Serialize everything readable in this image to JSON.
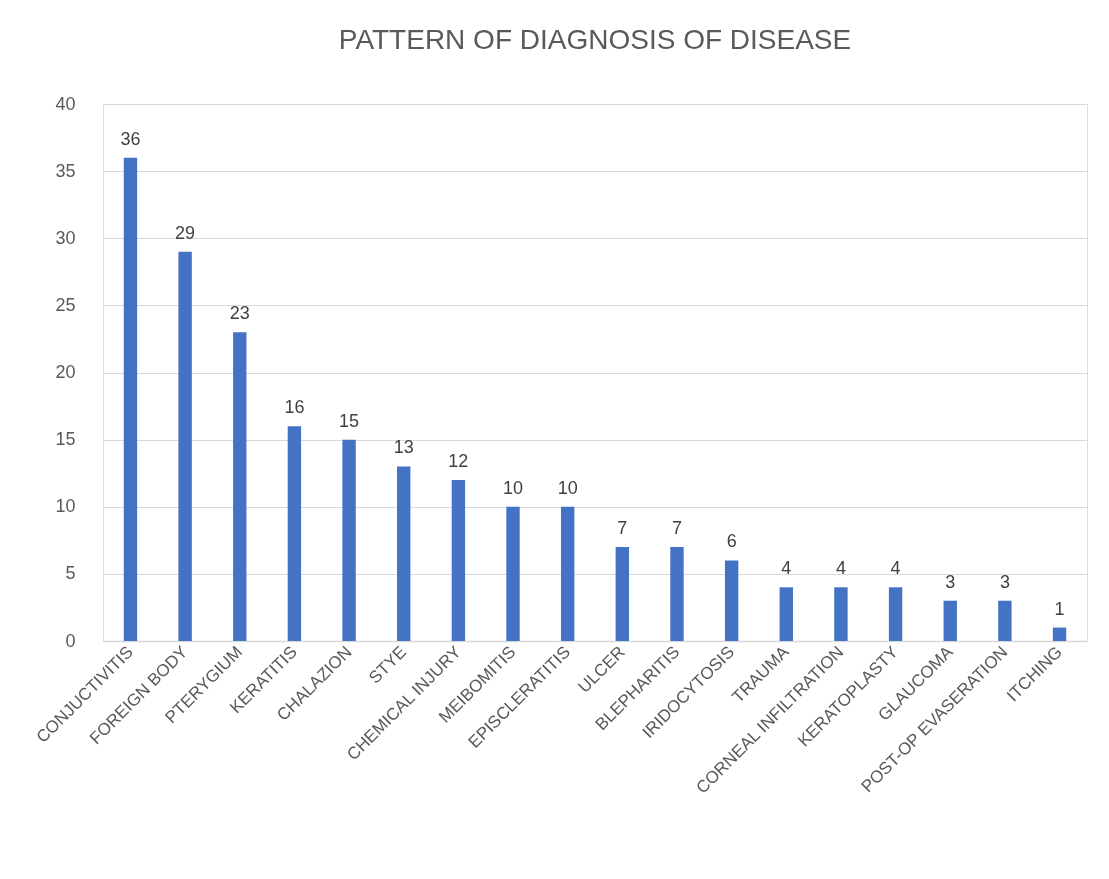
{
  "chart_data": {
    "type": "bar",
    "title": "PATTERN OF DIAGNOSIS OF DISEASE",
    "categories": [
      "CONJUCTIVITIS",
      "FOREIGN BODY",
      "PTERYGIUM",
      "KERATITIS",
      "CHALAZION",
      "STYE",
      "CHEMICAL INJURY",
      "MEIBOMITIS",
      "EPISCLERATITIS",
      "ULCER",
      "BLEPHARITIS",
      "IRIDOCYTOSIS",
      "TRAUMA",
      "CORNEAL INFILTRATION",
      "KERATOPLASTY",
      "GLAUCOMA",
      "POST-OP EVASERATION",
      "ITCHING"
    ],
    "values": [
      36,
      29,
      23,
      16,
      15,
      13,
      12,
      10,
      10,
      7,
      7,
      6,
      4,
      4,
      4,
      3,
      3,
      1
    ],
    "color": "#4472c4",
    "ylim": [
      0,
      40
    ],
    "yticks": [
      0,
      5,
      10,
      15,
      20,
      25,
      30,
      35,
      40
    ],
    "grid": "y",
    "data_labels": true
  }
}
